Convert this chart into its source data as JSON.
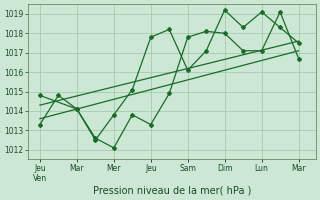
{
  "xlabel": "Pression niveau de la mer( hPa )",
  "xtick_labels": [
    "Jeu\nVen",
    "Mar",
    "Mer",
    "Jeu",
    "Sam",
    "Dim",
    "Lun",
    "Mar"
  ],
  "xtick_positions": [
    0,
    1.5,
    3,
    4.5,
    6,
    7.5,
    9,
    10.5
  ],
  "ylim": [
    1011.5,
    1019.5
  ],
  "yticks": [
    1012,
    1013,
    1014,
    1015,
    1016,
    1017,
    1018,
    1019
  ],
  "bg_color": "#cce8d4",
  "grid_color": "#9dc4aa",
  "line_color": "#1a6b2a",
  "line1_x": [
    0,
    0.75,
    1.5,
    2.25,
    3.0,
    3.75,
    4.5,
    5.25,
    6.0,
    6.75,
    7.5,
    8.25,
    9.0,
    9.75,
    10.5
  ],
  "line1_y": [
    1013.3,
    1014.8,
    1014.1,
    1012.6,
    1012.1,
    1013.8,
    1013.3,
    1014.9,
    1017.8,
    1018.1,
    1018.0,
    1017.1,
    1017.1,
    1019.1,
    1016.7
  ],
  "line2_x": [
    0.0,
    1.5,
    2.25,
    3.0,
    3.75,
    4.5,
    5.25,
    6.0,
    6.75,
    7.5,
    8.25,
    9.0,
    9.75,
    10.5
  ],
  "line2_y": [
    1014.8,
    1014.1,
    1012.5,
    1013.8,
    1015.1,
    1017.8,
    1018.2,
    1016.1,
    1017.1,
    1019.2,
    1018.3,
    1019.1,
    1018.3,
    1017.5
  ],
  "trend1_x": [
    0.0,
    10.5
  ],
  "trend1_y": [
    1013.6,
    1017.1
  ],
  "trend2_x": [
    0.0,
    10.5
  ],
  "trend2_y": [
    1014.3,
    1017.6
  ],
  "xlim": [
    -0.5,
    11.2
  ]
}
